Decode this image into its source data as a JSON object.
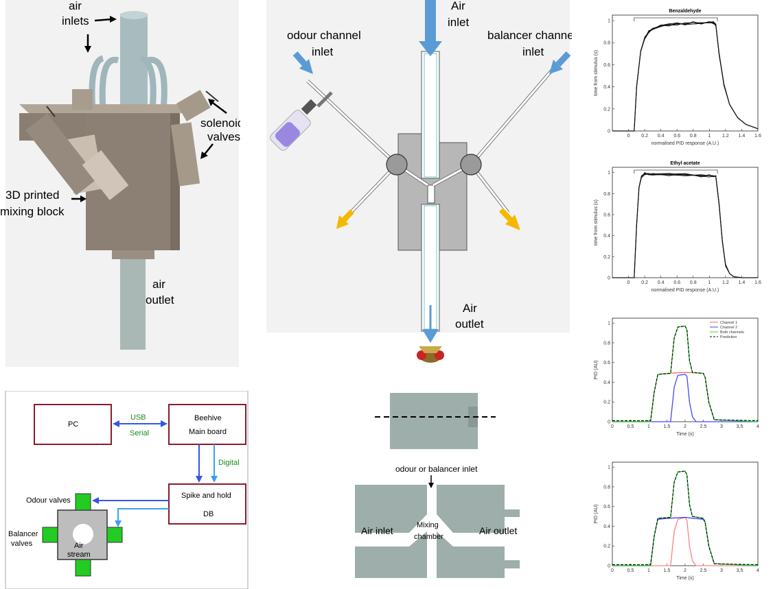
{
  "render": {
    "label_size": 17,
    "small_size": 11,
    "tick_size": 7
  },
  "panel_a": {
    "labels": {
      "air_inlets": [
        "air",
        "inlets"
      ],
      "solenoid_valves": [
        "solenoid",
        "valves"
      ],
      "mixing_block": [
        "3D printed",
        "mixing block"
      ],
      "air_outlet": [
        "air",
        "outlet"
      ]
    }
  },
  "panel_b": {
    "labels": {
      "odour_inlet": [
        "odour channel",
        "inlet"
      ],
      "air_inlet": [
        "Air",
        "inlet"
      ],
      "balancer_inlet": [
        "balancer channel",
        "inlet"
      ],
      "air_outlet": [
        "Air",
        "outlet"
      ]
    }
  },
  "panel_c": {
    "pc": "PC",
    "usb": "USB",
    "serial": "Serial",
    "beehive": [
      "Beehive",
      "Main board"
    ],
    "digital": "Digital",
    "spike": [
      "Spike and hold",
      "DB"
    ],
    "odour_valves": "Odour valves",
    "balancer_valves": [
      "Balancer",
      "valves"
    ],
    "air_stream": [
      "Air",
      "stream"
    ],
    "colors": {
      "box": "#8b1a2b",
      "arrow": "#3355ee",
      "arrow_light": "#3aa0ee",
      "green_text": "#1e8a1e",
      "valve": "#22cc22"
    }
  },
  "panel_d": {
    "top_label": "odour or balancer inlet",
    "left_label": "Air inlet",
    "center_label": [
      "Mixing",
      "chamber"
    ],
    "right_label": "Air outlet"
  },
  "chart_data": [
    {
      "type": "line",
      "title": "Benzaldehyde",
      "xlabel": "normalised PID response (A.U.)",
      "ylabel": "time from stimulus (s)",
      "xlim": [
        -0.2,
        1.6
      ],
      "ylim": [
        0,
        1.05
      ],
      "xticks": [
        "0",
        "0.2",
        "0.4",
        "0.6",
        "0.8",
        "1",
        "1.2",
        "1.4",
        "1.6"
      ],
      "yticks": [
        "0",
        "0.2",
        "0.4",
        "0.6",
        "0.8",
        "1"
      ],
      "stimulus_bar": [
        0.07,
        1.1
      ],
      "series": [
        {
          "x": [
            -0.2,
            0.07,
            0.1,
            0.15,
            0.2,
            0.25,
            0.3,
            0.4,
            0.5,
            0.6,
            0.7,
            0.8,
            0.9,
            1.0,
            1.05,
            1.08,
            1.12,
            1.18,
            1.25,
            1.35,
            1.45,
            1.6
          ],
          "values": [
            0,
            0,
            0.4,
            0.72,
            0.84,
            0.9,
            0.93,
            0.95,
            0.96,
            0.97,
            0.97,
            0.98,
            0.98,
            0.98,
            0.98,
            0.96,
            0.7,
            0.42,
            0.24,
            0.12,
            0.06,
            0.02
          ]
        }
      ]
    },
    {
      "type": "line",
      "title": "Ethyl acetate",
      "xlabel": "normalised PID response (A.U.)",
      "ylabel": "time from stimulus (s)",
      "xlim": [
        -0.2,
        1.6
      ],
      "ylim": [
        0,
        1.05
      ],
      "xticks": [
        "0",
        "0.2",
        "0.4",
        "0.6",
        "0.8",
        "1",
        "1.2",
        "1.4",
        "1.6"
      ],
      "yticks": [
        "0",
        "0.2",
        "0.4",
        "0.6",
        "0.8",
        "1"
      ],
      "stimulus_bar": [
        0.07,
        1.1
      ],
      "series": [
        {
          "x": [
            -0.2,
            0.07,
            0.1,
            0.13,
            0.16,
            0.2,
            0.25,
            0.3,
            0.5,
            0.7,
            0.9,
            1.0,
            1.05,
            1.08,
            1.12,
            1.16,
            1.2,
            1.25,
            1.3,
            1.4,
            1.6
          ],
          "values": [
            0,
            0,
            0.5,
            0.86,
            0.96,
            0.99,
            0.99,
            0.98,
            0.98,
            0.98,
            0.97,
            0.97,
            0.97,
            0.96,
            0.7,
            0.35,
            0.12,
            0.04,
            0.01,
            0,
            0
          ]
        }
      ]
    },
    {
      "type": "line",
      "xlabel": "Time (s)",
      "ylabel": "PID (AU)",
      "xlim": [
        0,
        4
      ],
      "ylim": [
        0,
        1.05
      ],
      "xticks": [
        "0",
        "0.5",
        "1",
        "1.5",
        "2",
        "2.5",
        "3",
        "3.5",
        "4"
      ],
      "yticks": [
        "0",
        "0.2",
        "0.4",
        "0.6",
        "0.8",
        "1"
      ],
      "legend": [
        "Channel 1",
        "Channel 2",
        "Both channels",
        "Prediction"
      ],
      "series": [
        {
          "name": "Channel 1",
          "color": "#ff6060",
          "x": [
            0,
            1.05,
            1.15,
            1.25,
            1.5,
            2.0,
            2.5,
            2.55,
            2.65,
            2.8,
            4
          ],
          "values": [
            0,
            0,
            0.3,
            0.48,
            0.49,
            0.5,
            0.49,
            0.45,
            0.2,
            0.02,
            0
          ]
        },
        {
          "name": "Channel 2",
          "color": "#4444ff",
          "x": [
            0,
            1.6,
            1.7,
            1.8,
            2.0,
            2.05,
            2.12,
            2.2,
            2.3,
            4
          ],
          "values": [
            0,
            0,
            0.35,
            0.47,
            0.48,
            0.46,
            0.2,
            0.05,
            0,
            0
          ]
        },
        {
          "name": "Both channels",
          "color": "#22dd22",
          "x": [
            0,
            1.05,
            1.15,
            1.25,
            1.6,
            1.7,
            1.8,
            2.0,
            2.05,
            2.12,
            2.2,
            2.5,
            2.55,
            2.65,
            2.8,
            4
          ],
          "values": [
            0,
            0,
            0.3,
            0.48,
            0.49,
            0.85,
            0.96,
            0.97,
            0.93,
            0.62,
            0.5,
            0.49,
            0.45,
            0.2,
            0.02,
            0
          ]
        },
        {
          "name": "Prediction",
          "color": "#000000",
          "dashed": true,
          "x": [
            0,
            1.05,
            1.15,
            1.25,
            1.6,
            1.7,
            1.8,
            2.0,
            2.05,
            2.12,
            2.2,
            2.5,
            2.55,
            2.65,
            2.8,
            4
          ],
          "values": [
            0.01,
            0.01,
            0.3,
            0.48,
            0.49,
            0.85,
            0.96,
            0.97,
            0.93,
            0.62,
            0.5,
            0.49,
            0.45,
            0.2,
            0.02,
            0.01
          ]
        }
      ]
    },
    {
      "type": "line",
      "xlabel": "Time (s)",
      "ylabel": "PID (AU)",
      "xlim": [
        0,
        4
      ],
      "ylim": [
        0,
        1.05
      ],
      "xticks": [
        "0",
        "0.5",
        "1",
        "1.5",
        "2",
        "2.5",
        "3",
        "3.5",
        "4"
      ],
      "yticks": [
        "0",
        "0.2",
        "0.4",
        "0.6",
        "0.8",
        "1"
      ],
      "series": [
        {
          "color": "#ff8080",
          "x": [
            0,
            1.6,
            1.7,
            1.8,
            2.0,
            2.05,
            2.12,
            2.2,
            2.3,
            4
          ],
          "values": [
            0,
            0,
            0.35,
            0.47,
            0.49,
            0.46,
            0.2,
            0.05,
            0,
            0
          ]
        },
        {
          "color": "#3333ff",
          "x": [
            0,
            1.05,
            1.15,
            1.25,
            1.5,
            2.0,
            2.5,
            2.55,
            2.65,
            2.8,
            4
          ],
          "values": [
            0,
            0,
            0.3,
            0.47,
            0.48,
            0.49,
            0.47,
            0.44,
            0.2,
            0.02,
            0
          ]
        },
        {
          "color": "#22dd22",
          "x": [
            0,
            1.05,
            1.15,
            1.25,
            1.6,
            1.7,
            1.8,
            2.0,
            2.05,
            2.12,
            2.2,
            2.5,
            2.55,
            2.65,
            2.8,
            4
          ],
          "values": [
            0,
            0,
            0.3,
            0.48,
            0.49,
            0.85,
            0.95,
            0.96,
            0.92,
            0.62,
            0.5,
            0.48,
            0.44,
            0.2,
            0.02,
            0
          ]
        },
        {
          "color": "#000000",
          "dashed": true,
          "x": [
            0,
            1.05,
            1.15,
            1.25,
            1.6,
            1.7,
            1.8,
            2.0,
            2.05,
            2.12,
            2.2,
            2.5,
            2.55,
            2.65,
            2.8,
            4
          ],
          "values": [
            0.01,
            0.01,
            0.3,
            0.48,
            0.49,
            0.85,
            0.95,
            0.96,
            0.92,
            0.62,
            0.5,
            0.48,
            0.44,
            0.2,
            0.02,
            0.01
          ]
        }
      ]
    }
  ]
}
